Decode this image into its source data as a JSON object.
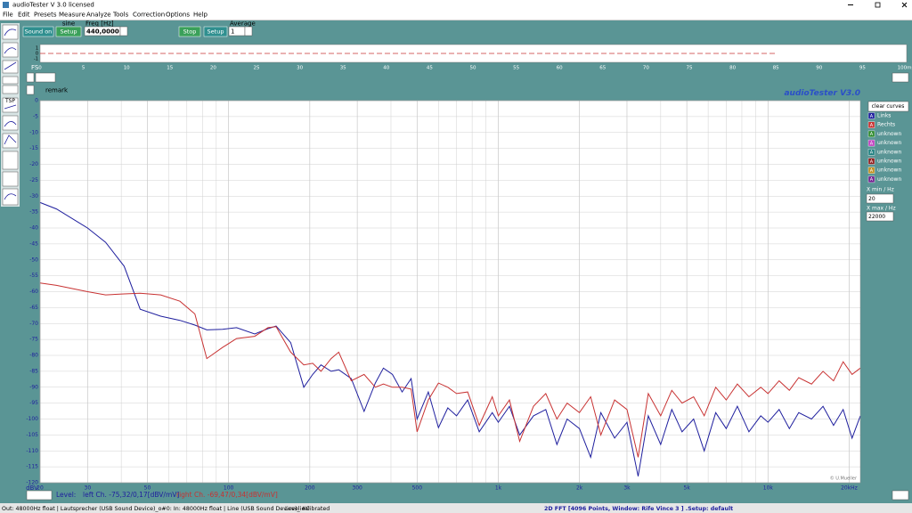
{
  "window": {
    "title": "audioTester  V 3.0   licensed"
  },
  "menu": [
    "File",
    "Edit",
    "Presets",
    "Measure",
    "Analyze",
    "Tools",
    "Correction",
    "Options",
    "Help"
  ],
  "toolbar": {
    "sound_on": "Sound on",
    "setup": "Setup",
    "signal": "sine",
    "freq_label": "Freq [Hz]",
    "freq": "440,0000",
    "stop": "Stop",
    "setup2": "Setup",
    "average_label": "Average",
    "average": "1",
    "tsp": "TSP"
  },
  "overview": {
    "fs": "FS",
    "ticks": [
      "0",
      "5",
      "10",
      "15",
      "20",
      "25",
      "30",
      "35",
      "40",
      "45",
      "50",
      "55",
      "60",
      "65",
      "70",
      "75",
      "80",
      "85",
      "90",
      "95",
      "100ms"
    ],
    "y_labels": [
      "1",
      "0",
      "-1"
    ]
  },
  "remark": "remark",
  "watermark": "audioTester  V3.0",
  "chart_data": {
    "type": "line",
    "y_label": "dBV",
    "credit": "© U.Mueller",
    "log_x": true,
    "grid": true,
    "xlim": [
      20,
      22000
    ],
    "ylim": [
      -120,
      0
    ],
    "xticks": [
      20,
      30,
      50,
      100,
      200,
      300,
      500,
      {
        "value": 1000,
        "label": "1k"
      },
      {
        "value": 2000,
        "label": "2k"
      },
      {
        "value": 3000,
        "label": "3k"
      },
      {
        "value": 5000,
        "label": "5k"
      },
      {
        "value": 10000,
        "label": "10k"
      },
      {
        "value": 20000,
        "label": "20kHz"
      }
    ],
    "xgrid_minor": [
      40,
      60,
      70,
      80,
      90,
      400,
      600,
      700,
      800,
      900,
      4000,
      6000,
      7000,
      8000,
      9000
    ],
    "yticks": [
      0,
      -5,
      -10,
      -15,
      -20,
      -25,
      -30,
      -35,
      -40,
      -45,
      -50,
      -55,
      -60,
      -65,
      -70,
      -75,
      -80,
      -85,
      -90,
      -95,
      -100,
      -105,
      -110,
      -115,
      -120
    ],
    "x": [
      20,
      23,
      30,
      35,
      41,
      47,
      56,
      66,
      75,
      83,
      95,
      107,
      125,
      140,
      150,
      170,
      190,
      205,
      220,
      240,
      256,
      285,
      318,
      350,
      375,
      405,
      440,
      475,
      500,
      550,
      600,
      650,
      700,
      770,
      850,
      950,
      1000,
      1100,
      1200,
      1350,
      1500,
      1650,
      1800,
      2000,
      2200,
      2400,
      2700,
      3000,
      3300,
      3600,
      4000,
      4400,
      4800,
      5300,
      5800,
      6400,
      7000,
      7700,
      8500,
      9400,
      10000,
      11000,
      12000,
      13000,
      14500,
      16000,
      17500,
      19000,
      20500,
      22000
    ],
    "series": [
      {
        "name": "Links",
        "color": "#1f1f9e",
        "values": [
          -32,
          -34,
          -40,
          -44.5,
          -52,
          -65.5,
          -67.7,
          -69,
          -70.5,
          -72,
          -71.8,
          -71.3,
          -73.3,
          -71.6,
          -70.8,
          -76,
          -90,
          -86,
          -83,
          -85,
          -84.5,
          -87.3,
          -97.6,
          -88.7,
          -84,
          -86,
          -91.5,
          -87.3,
          -100,
          -91.5,
          -102.7,
          -96.5,
          -99,
          -94,
          -104,
          -98,
          -101,
          -96,
          -105,
          -99,
          -97,
          -108,
          -100,
          -103,
          -112,
          -98,
          -106,
          -101,
          -118,
          -99,
          -108,
          -97,
          -104,
          -100,
          -110,
          -98,
          -103,
          -96,
          -104,
          -99,
          -101,
          -97,
          -103,
          -98,
          -100,
          -96,
          -102,
          -97,
          -106,
          -99
        ]
      },
      {
        "name": "Rechts",
        "color": "#c83232",
        "values": [
          -57.3,
          -58,
          -60,
          -61,
          -60.7,
          -60.5,
          -61,
          -63,
          -67,
          -81,
          -77.5,
          -74.7,
          -74,
          -71.3,
          -71,
          -79,
          -83,
          -82.5,
          -85,
          -81,
          -79,
          -88,
          -86,
          -90,
          -89,
          -90,
          -90,
          -90.6,
          -104,
          -94,
          -88.7,
          -90,
          -92,
          -91.5,
          -102,
          -93,
          -99,
          -94,
          -107,
          -96,
          -92,
          -100,
          -95,
          -98,
          -93,
          -105,
          -94,
          -97,
          -112,
          -92,
          -99,
          -91,
          -95,
          -93,
          -99,
          -90,
          -94,
          -89,
          -93,
          -90,
          -92,
          -88,
          -91,
          -87,
          -89,
          -85,
          -88,
          -82,
          -86,
          -84
        ]
      }
    ]
  },
  "side_panel": {
    "clear": "clear curves",
    "letter": "A",
    "unknown": [
      {
        "name": "unknown",
        "color": "#2e8b2e"
      },
      {
        "name": "unknown",
        "color": "#c040c0"
      },
      {
        "name": "unknown",
        "color": "#208080"
      },
      {
        "name": "unknown",
        "color": "#902020"
      },
      {
        "name": "unknown",
        "color": "#c09020"
      },
      {
        "name": "unknown",
        "color": "#702090"
      }
    ],
    "xmin_label": "X min / Hz",
    "xmin": "20",
    "xmax_label": "X max / Hz",
    "xmax": "22000"
  },
  "level": {
    "label": "Level:",
    "left": "left Ch. -75,32/0,17[dBV/mV]",
    "right": "right Ch. -69,47/0,34[dBV/mV]"
  },
  "status": {
    "io": "Out: 48000Hz float | Lautsprecher (USB Sound Device)_o#0: In: 48000Hz float | Line (USB Sound Device)_i#0",
    "calibrated": "Level calibrated",
    "fft": "2D FFT [4096 Points, Window: Rife Vince 3 ]  .Setup:  default"
  }
}
